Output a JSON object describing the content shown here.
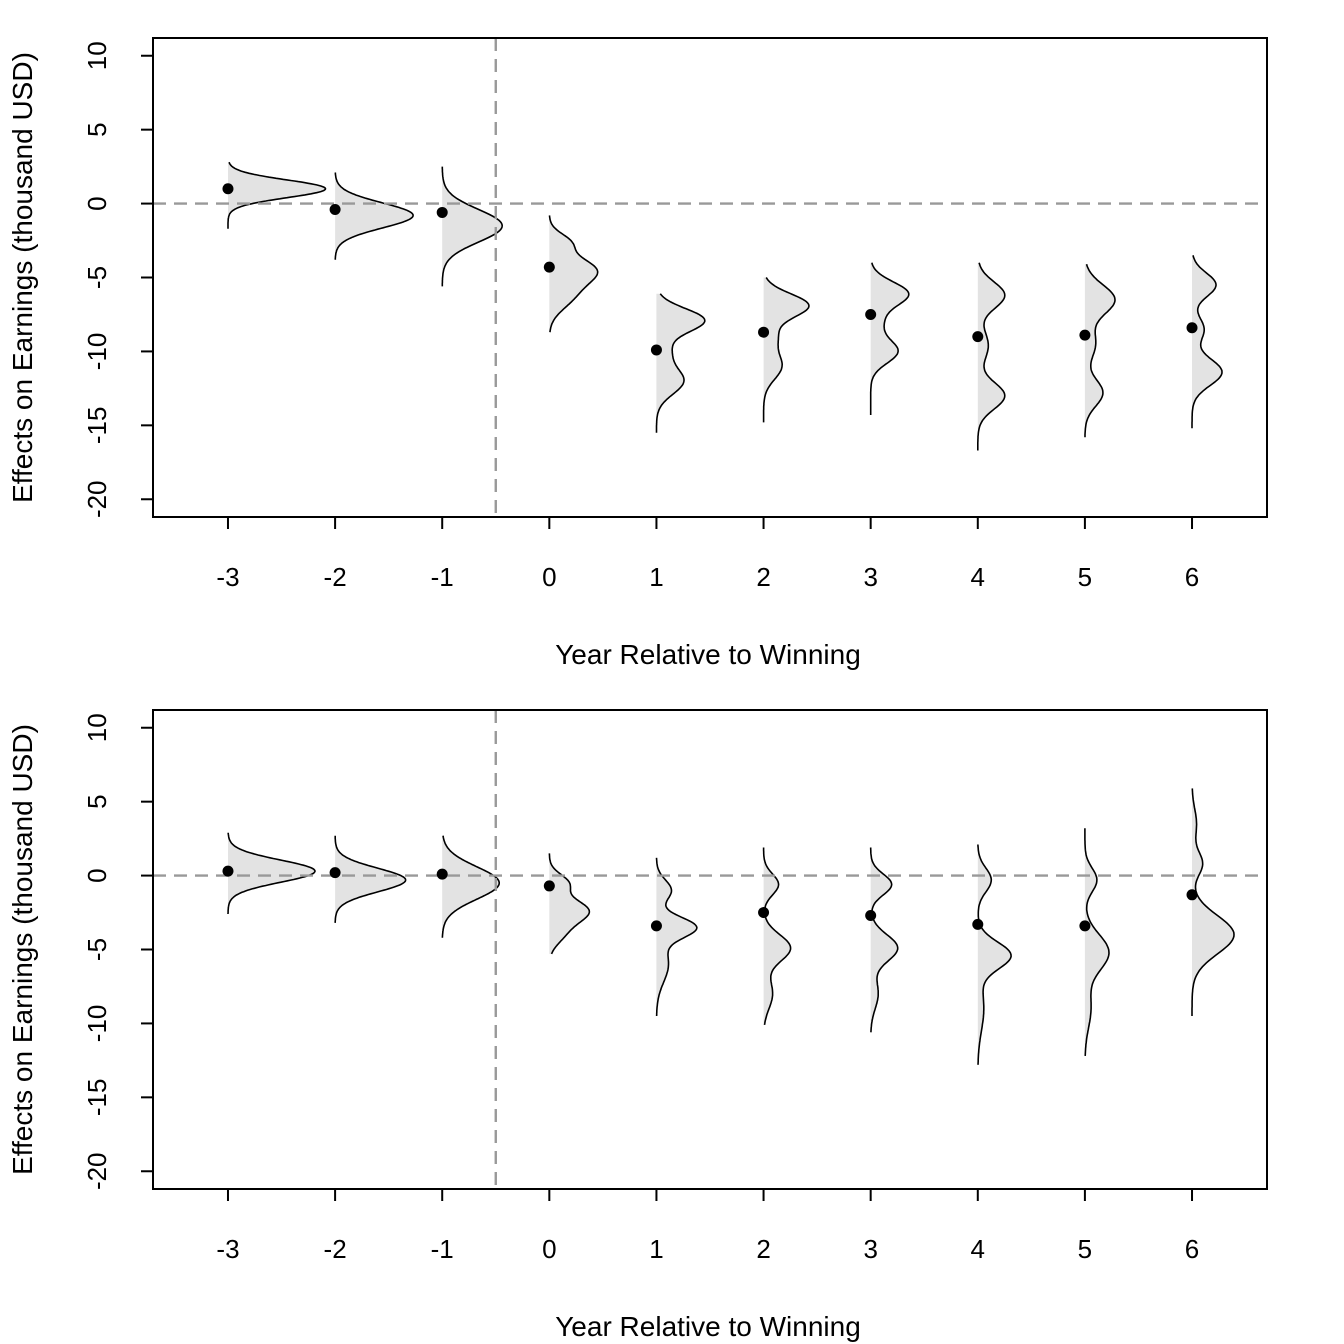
{
  "chart_data": [
    {
      "type": "scatter",
      "title": "",
      "xlabel": "Year Relative to Winning",
      "ylabel": "Effects on Earnings (thousand USD)",
      "categories": [
        "-3",
        "-2",
        "-1",
        "0",
        "1",
        "2",
        "3",
        "4",
        "5",
        "6"
      ],
      "x": [
        -3,
        -2,
        -1,
        0,
        1,
        2,
        3,
        4,
        5,
        6
      ],
      "yticks": [
        "-20",
        "-15",
        "-10",
        "-5",
        "0",
        "5",
        "10"
      ],
      "ylim": [
        -21.2,
        11.2
      ],
      "xlim": [
        -3.7,
        6.7
      ],
      "reference_lines": {
        "y": 0,
        "x": -0.5
      },
      "grid": false,
      "series": [
        {
          "values": [
            1.0,
            -0.4,
            -0.6,
            -4.3,
            -9.9,
            -8.7,
            -7.5,
            -9.0,
            -8.9,
            -8.4
          ],
          "distributions": [
            {
              "ymin": -1.7,
              "ymax": 2.8,
              "peaks": [
                [
                  1.0,
                  0.65,
                  0.6
                ]
              ]
            },
            {
              "ymin": -3.8,
              "ymax": 2.1,
              "peaks": [
                [
                  -0.8,
                  0.52,
                  0.85
                ]
              ]
            },
            {
              "ymin": -5.6,
              "ymax": 2.5,
              "peaks": [
                [
                  -1.5,
                  0.4,
                  1.1
                ]
              ]
            },
            {
              "ymin": -8.7,
              "ymax": -0.8,
              "peaks": [
                [
                  -4.5,
                  0.3,
                  0.9
                ],
                [
                  -2.6,
                  0.12,
                  0.6
                ],
                [
                  -6.3,
                  0.14,
                  0.9
                ]
              ]
            },
            {
              "ymin": -15.5,
              "ymax": -6.1,
              "peaks": [
                [
                  -7.9,
                  0.32,
                  0.8
                ],
                [
                  -12.0,
                  0.18,
                  0.9
                ],
                [
                  -10.0,
                  0.08,
                  0.8
                ]
              ]
            },
            {
              "ymin": -14.8,
              "ymax": -5.0,
              "peaks": [
                [
                  -6.9,
                  0.3,
                  0.8
                ],
                [
                  -11.0,
                  0.12,
                  0.9
                ],
                [
                  -9.0,
                  0.08,
                  0.8
                ]
              ]
            },
            {
              "ymin": -14.3,
              "ymax": -4.0,
              "peaks": [
                [
                  -6.1,
                  0.25,
                  0.8
                ],
                [
                  -10.0,
                  0.18,
                  0.8
                ],
                [
                  -8.0,
                  0.07,
                  0.8
                ]
              ]
            },
            {
              "ymin": -16.7,
              "ymax": -4.0,
              "peaks": [
                [
                  -6.2,
                  0.18,
                  0.9
                ],
                [
                  -13.0,
                  0.18,
                  0.9
                ],
                [
                  -9.6,
                  0.07,
                  1.0
                ]
              ]
            },
            {
              "ymin": -15.8,
              "ymax": -4.1,
              "peaks": [
                [
                  -6.5,
                  0.2,
                  1.0
                ],
                [
                  -12.8,
                  0.12,
                  0.9
                ],
                [
                  -9.5,
                  0.07,
                  1.0
                ]
              ]
            },
            {
              "ymin": -15.2,
              "ymax": -3.5,
              "peaks": [
                [
                  -5.5,
                  0.16,
                  0.8
                ],
                [
                  -11.4,
                  0.2,
                  0.9
                ],
                [
                  -8.5,
                  0.08,
                  0.8
                ]
              ]
            }
          ]
        }
      ]
    },
    {
      "type": "scatter",
      "title": "",
      "xlabel": "Year Relative to Winning",
      "ylabel": "Effects on Earnings (thousand USD)",
      "categories": [
        "-3",
        "-2",
        "-1",
        "0",
        "1",
        "2",
        "3",
        "4",
        "5",
        "6"
      ],
      "x": [
        -3,
        -2,
        -1,
        0,
        1,
        2,
        3,
        4,
        5,
        6
      ],
      "yticks": [
        "-20",
        "-15",
        "-10",
        "-5",
        "0",
        "5",
        "10"
      ],
      "ylim": [
        -21.2,
        11.2
      ],
      "xlim": [
        -3.7,
        6.7
      ],
      "reference_lines": {
        "y": 0,
        "x": -0.5
      },
      "grid": false,
      "series": [
        {
          "values": [
            0.3,
            0.2,
            0.1,
            -0.7,
            -3.4,
            -2.5,
            -2.7,
            -3.3,
            -3.4,
            -1.3
          ],
          "distributions": [
            {
              "ymin": -2.6,
              "ymax": 2.9,
              "peaks": [
                [
                  0.3,
                  0.58,
                  0.75
                ]
              ]
            },
            {
              "ymin": -3.2,
              "ymax": 2.7,
              "peaks": [
                [
                  -0.3,
                  0.47,
                  0.8
                ]
              ]
            },
            {
              "ymin": -4.2,
              "ymax": 2.7,
              "peaks": [
                [
                  -0.5,
                  0.38,
                  1.1
                ]
              ]
            },
            {
              "ymin": -5.3,
              "ymax": 1.5,
              "peaks": [
                [
                  -2.4,
                  0.26,
                  0.8
                ],
                [
                  -0.5,
                  0.12,
                  0.6
                ],
                [
                  -4.0,
                  0.08,
                  0.7
                ]
              ]
            },
            {
              "ymin": -9.5,
              "ymax": 1.2,
              "peaks": [
                [
                  -3.5,
                  0.26,
                  0.7
                ],
                [
                  -1.0,
                  0.1,
                  0.7
                ],
                [
                  -6.0,
                  0.08,
                  1.2
                ]
              ]
            },
            {
              "ymin": -10.1,
              "ymax": 1.9,
              "peaks": [
                [
                  -4.9,
                  0.18,
                  0.9
                ],
                [
                  -0.6,
                  0.1,
                  0.7
                ],
                [
                  -8.0,
                  0.06,
                  1.0
                ]
              ]
            },
            {
              "ymin": -10.6,
              "ymax": 1.9,
              "peaks": [
                [
                  -4.9,
                  0.18,
                  0.9
                ],
                [
                  -0.6,
                  0.14,
                  0.7
                ],
                [
                  -8.0,
                  0.05,
                  1.0
                ]
              ]
            },
            {
              "ymin": -12.8,
              "ymax": 2.1,
              "peaks": [
                [
                  -5.4,
                  0.22,
                  0.9
                ],
                [
                  -0.3,
                  0.09,
                  0.8
                ],
                [
                  -9.0,
                  0.04,
                  1.5
                ]
              ]
            },
            {
              "ymin": -12.2,
              "ymax": 3.2,
              "peaks": [
                [
                  -5.2,
                  0.16,
                  1.2
                ],
                [
                  -0.3,
                  0.08,
                  0.8
                ],
                [
                  -9.0,
                  0.04,
                  1.3
                ]
              ]
            },
            {
              "ymin": -9.5,
              "ymax": 5.9,
              "peaks": [
                [
                  -4.0,
                  0.28,
                  1.3
                ],
                [
                  0.8,
                  0.07,
                  0.8
                ],
                [
                  3.5,
                  0.03,
                  1.0
                ]
              ]
            }
          ]
        }
      ]
    }
  ]
}
